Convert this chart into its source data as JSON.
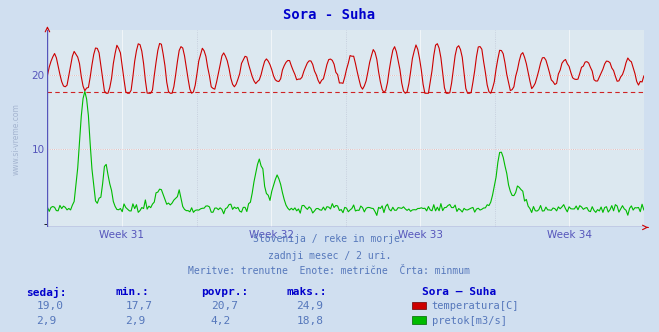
{
  "title": "Sora - Suha",
  "title_color": "#0000cc",
  "bg_color": "#d0dff0",
  "plot_bg_color": "#dce8f0",
  "grid_color": "#c8d8e8",
  "grid_color_major": "#ffffff",
  "xlabel_weeks": [
    "Week 31",
    "Week 32",
    "Week 33",
    "Week 34"
  ],
  "yticks": [
    10,
    20
  ],
  "ylim": [
    -0.5,
    26
  ],
  "temp_color": "#cc0000",
  "flow_color": "#00bb00",
  "dashed_line_color": "#cc0000",
  "dashed_line_y": 17.7,
  "axis_color": "#5555bb",
  "tick_color": "#5555bb",
  "subtitle1": "Slovenija / reke in morje.",
  "subtitle2": "zadnji mesec / 2 uri.",
  "subtitle3": "Meritve: trenutne  Enote: metrične  Črta: minmum",
  "subtitle_color": "#5577bb",
  "table_headers": [
    "sedaj:",
    "min.:",
    "povpr.:",
    "maks.:"
  ],
  "table_header_color": "#0000cc",
  "table_data_color": "#5577bb",
  "table_row1": [
    "19,0",
    "17,7",
    "20,7",
    "24,9"
  ],
  "table_row2": [
    "2,9",
    "2,9",
    "4,2",
    "18,8"
  ],
  "legend_title": "Sora – Suha",
  "legend_color": "#0000cc",
  "legend_temp": "temperatura[C]",
  "legend_flow": "pretok[m3/s]",
  "n_points": 336,
  "watermark": "www.si-vreme.com"
}
